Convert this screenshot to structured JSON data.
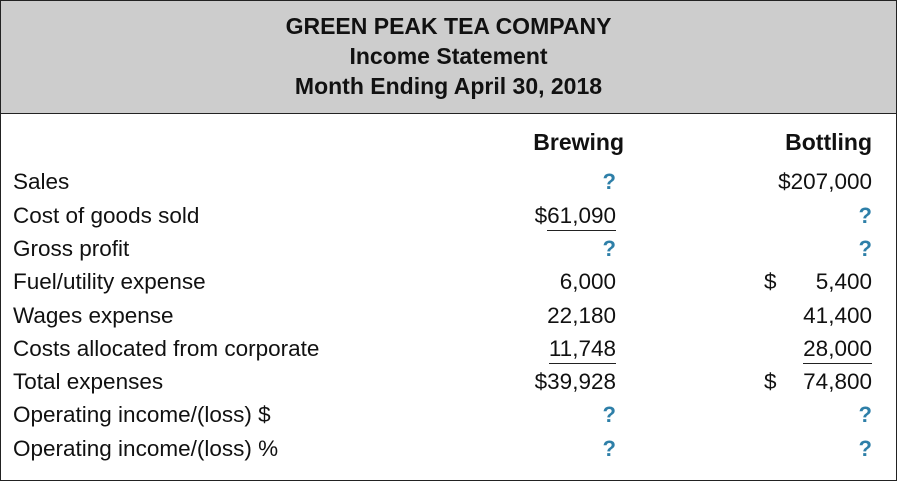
{
  "header": {
    "company": "GREEN PEAK TEA COMPANY",
    "statement": "Income Statement",
    "period": "Month Ending April 30, 2018"
  },
  "columns": {
    "brewing": "Brewing",
    "bottling": "Bottling"
  },
  "rows": [
    {
      "label": "Sales",
      "brewing": "?",
      "bottling": "$207,000"
    },
    {
      "label": "Cost of goods sold",
      "brewing_prefix": "$",
      "brewing": "61,090",
      "bottling": "?"
    },
    {
      "label": "Gross profit",
      "brewing": "?",
      "bottling": "?"
    },
    {
      "label": "Fuel/utility expense",
      "brewing": "6,000",
      "bottling_prefix": "$",
      "bottling": "5,400"
    },
    {
      "label": "Wages expense",
      "brewing": "22,180",
      "bottling": "41,400"
    },
    {
      "label": "Costs allocated from corporate",
      "brewing": "11,748",
      "bottling": "28,000"
    },
    {
      "label": "Total expenses",
      "brewing": "$39,928",
      "bottling_prefix": "$",
      "bottling": "74,800"
    },
    {
      "label": "Operating income/(loss) $",
      "brewing": "?",
      "bottling": "?"
    },
    {
      "label": "Operating income/(loss) %",
      "brewing": "?",
      "bottling": "?"
    }
  ]
}
